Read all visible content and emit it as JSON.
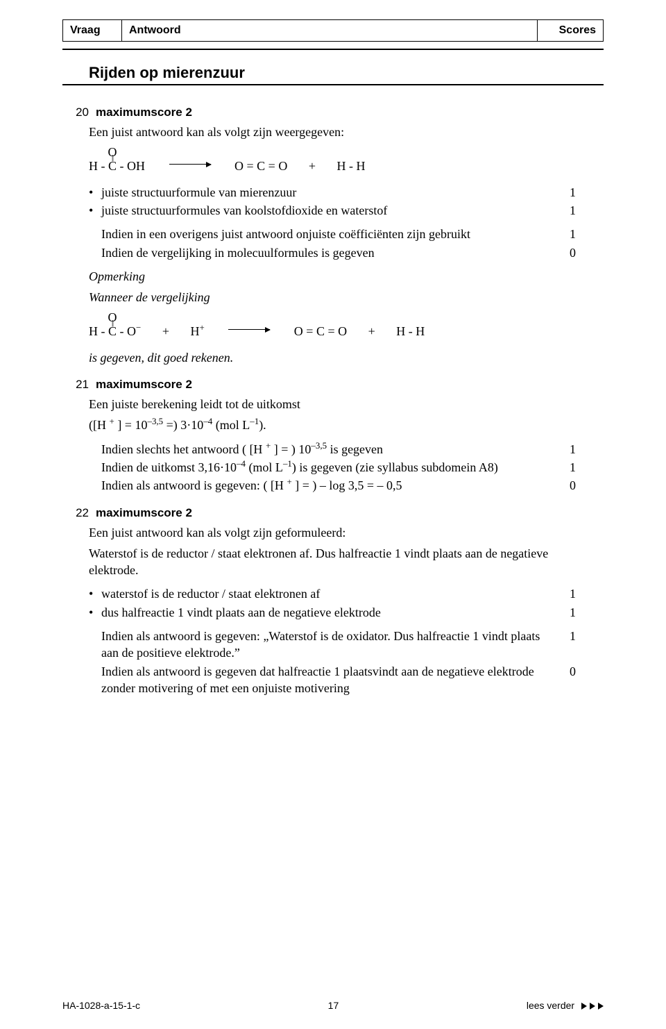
{
  "header": {
    "vraag": "Vraag",
    "antwoord": "Antwoord",
    "scores": "Scores"
  },
  "section_title": "Rijden op mierenzuur",
  "q20": {
    "num": "20",
    "label": "maximumscore 2",
    "intro": "Een juist antwoord kan als volgt zijn weergegeven:",
    "eq1": {
      "lhs": "H - C - OH",
      "rhs1": "O = C = O",
      "plus": "+",
      "rhs2": "H - H",
      "over": "O",
      "dbl": "||"
    },
    "bullets": [
      {
        "text": "juiste structuurformule van mierenzuur",
        "score": "1"
      },
      {
        "text": "juiste structuurformules van koolstofdioxide en waterstof",
        "score": "1"
      }
    ],
    "conds": [
      {
        "text": "Indien in een overigens juist antwoord onjuiste coëfficiënten zijn gebruikt",
        "score": "1"
      },
      {
        "text": "Indien de vergelijking in molecuulformules is gegeven",
        "score": "0"
      }
    ],
    "opm_head": "Opmerking",
    "opm_line": "Wanneer de vergelijking",
    "eq2": {
      "lhs": "H - C - O",
      "lhs_sup": "−",
      "mid": "H",
      "mid_sup": "+",
      "rhs1": "O = C = O",
      "plus": "+",
      "rhs2": "H - H",
      "over": "O",
      "dbl": "||"
    },
    "opm_end": "is gegeven, dit goed rekenen."
  },
  "q21": {
    "num": "21",
    "label": "maximumscore 2",
    "l1": "Een juiste berekening leidt tot de uitkomst",
    "l2_pre": "([H ",
    "l2_sup": "+",
    "l2_post": " ] = 10",
    "l2_exp": "–3,5",
    "l2_mid": " =) 3·10",
    "l2_exp2": "–4",
    "l2_end": " (mol L",
    "l2_exp3": "–1",
    "l2_close": ").",
    "conds": [
      {
        "text_pre": "Indien slechts het antwoord ( [H ",
        "sup": "+",
        "text_mid": " ] = ) 10",
        "exp": "–3,5",
        "text_end": " is gegeven",
        "score": "1"
      },
      {
        "text_pre": "Indien de uitkomst 3,16·10",
        "exp1": "–4",
        "text_mid": " (mol L",
        "exp2": "–1",
        "text_end": ") is gegeven (zie syllabus subdomein A8)",
        "score": "1"
      },
      {
        "text_pre": "Indien als antwoord is gegeven: ( [H ",
        "sup": "+",
        "text_end": " ] = ) – log 3,5 = – 0,5",
        "score": "0"
      }
    ]
  },
  "q22": {
    "num": "22",
    "label": "maximumscore 2",
    "l1": "Een juist antwoord kan als volgt zijn geformuleerd:",
    "l2": "Waterstof is de reductor / staat elektronen af. Dus halfreactie 1 vindt plaats aan de negatieve elektrode.",
    "bullets": [
      {
        "text": "waterstof is de reductor / staat elektronen af",
        "score": "1"
      },
      {
        "text": "dus halfreactie 1 vindt plaats aan de negatieve elektrode",
        "score": "1"
      }
    ],
    "conds": [
      {
        "text": "Indien als antwoord is gegeven: „Waterstof is de oxidator. Dus halfreactie 1 vindt plaats aan de positieve elektrode.”",
        "score": "1"
      },
      {
        "text": "Indien als antwoord is gegeven dat halfreactie 1 plaatsvindt aan de negatieve elektrode zonder motivering of met een onjuiste motivering",
        "score": "0"
      }
    ]
  },
  "footer": {
    "left": "HA-1028-a-15-1-c",
    "page": "17",
    "right": "lees verder"
  },
  "colors": {
    "text": "#000000",
    "bg": "#ffffff",
    "rule": "#000000"
  }
}
